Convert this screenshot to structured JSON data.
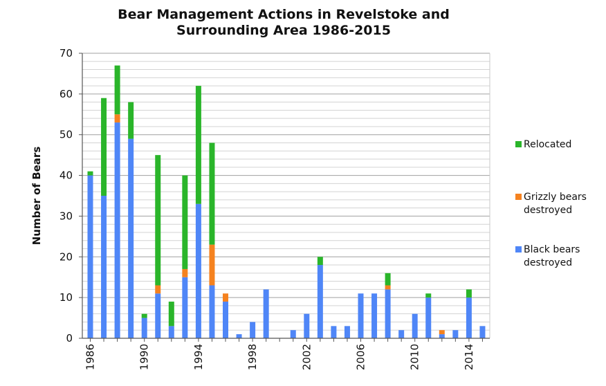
{
  "chart_data": {
    "type": "bar",
    "stacked": true,
    "title_lines": [
      "Bear Management Actions in Revelstoke and",
      "Surrounding Area 1986-2015"
    ],
    "ylabel": "Number of Bears",
    "xlabel": "",
    "ylim": [
      0,
      70
    ],
    "y_ticks": [
      0,
      10,
      20,
      30,
      40,
      50,
      60,
      70
    ],
    "grid": true,
    "legend_position": "right",
    "categories": [
      1986,
      1987,
      1988,
      1989,
      1990,
      1991,
      1992,
      1993,
      1994,
      1995,
      1996,
      1997,
      1998,
      1999,
      2000,
      2001,
      2002,
      2003,
      2004,
      2005,
      2006,
      2007,
      2008,
      2009,
      2010,
      2011,
      2012,
      2013,
      2014,
      2015
    ],
    "x_tick_labels": [
      "1986",
      "1990",
      "1994",
      "1998",
      "2002",
      "2006",
      "2010",
      "2014"
    ],
    "series": [
      {
        "name": "Black bears destroyed",
        "label_lines": [
          "Black bears",
          "destroyed"
        ],
        "color": "#4f86f7",
        "values": [
          40,
          35,
          53,
          49,
          5,
          11,
          3,
          15,
          33,
          13,
          9,
          1,
          4,
          12,
          0,
          2,
          6,
          18,
          3,
          3,
          11,
          11,
          12,
          2,
          6,
          10,
          1,
          2,
          10,
          3
        ]
      },
      {
        "name": "Grizzly bears destroyed",
        "label_lines": [
          "Grizzly bears",
          "destroyed"
        ],
        "color": "#f5821f",
        "values": [
          0,
          0,
          2,
          0,
          0,
          2,
          0,
          2,
          0,
          10,
          2,
          0,
          0,
          0,
          0,
          0,
          0,
          0,
          0,
          0,
          0,
          0,
          1,
          0,
          0,
          0,
          1,
          0,
          0,
          0
        ]
      },
      {
        "name": "Relocated",
        "label_lines": [
          "Relocated"
        ],
        "color": "#2ab52a",
        "values": [
          1,
          24,
          12,
          9,
          1,
          32,
          6,
          23,
          29,
          25,
          0,
          0,
          0,
          0,
          0,
          0,
          0,
          2,
          0,
          0,
          0,
          0,
          3,
          0,
          0,
          1,
          0,
          0,
          2,
          0
        ]
      }
    ]
  }
}
